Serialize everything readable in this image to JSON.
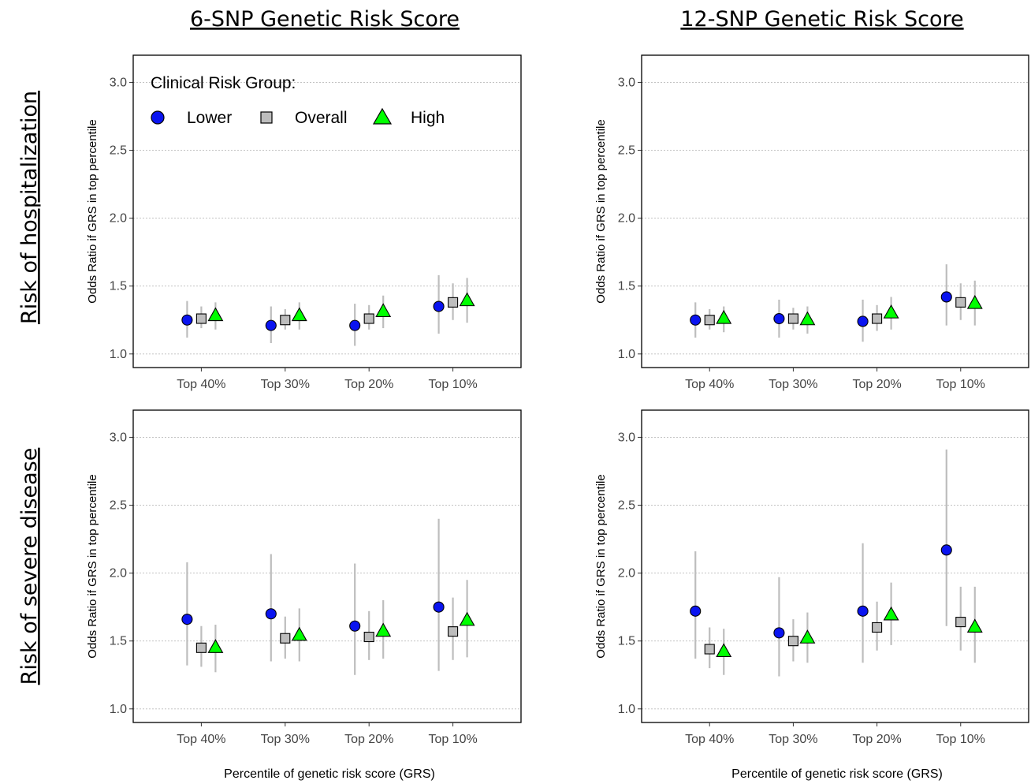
{
  "figure": {
    "column_titles": [
      "6-SNP Genetic Risk Score",
      "12-SNP Genetic Risk Score"
    ],
    "row_titles": [
      "Risk of hospitalization",
      "Risk of severe disease"
    ],
    "x_axis_label": "Percentile of genetic risk score (GRS)",
    "y_axis_label": "Odds Ratio if GRS in top percentile"
  },
  "legend": {
    "title": "Clinical Risk Group:",
    "placement": "top-left of first panel",
    "items": [
      {
        "label": "Lower",
        "shape": "circle",
        "color": "#0a14f0"
      },
      {
        "label": "Overall",
        "shape": "square",
        "color": "#bdbdbd"
      },
      {
        "label": "High",
        "shape": "triangle",
        "color": "#00ff00"
      }
    ]
  },
  "chart_data": [
    {
      "type": "scatter",
      "panel": "Risk of hospitalization / 6-SNP Genetic Risk Score",
      "categories": [
        "Top 40%",
        "Top 30%",
        "Top 20%",
        "Top 10%"
      ],
      "ylim": [
        0.9,
        3.2
      ],
      "yticks": [
        "1.0",
        "1.5",
        "2.0",
        "2.5",
        "3.0"
      ],
      "grid": "horizontal dotted",
      "series": [
        {
          "name": "Lower",
          "values": [
            1.25,
            1.21,
            1.21,
            1.35
          ],
          "ci_low": [
            1.12,
            1.08,
            1.06,
            1.15
          ],
          "ci_high": [
            1.39,
            1.35,
            1.37,
            1.58
          ]
        },
        {
          "name": "Overall",
          "values": [
            1.26,
            1.25,
            1.26,
            1.38
          ],
          "ci_low": [
            1.19,
            1.18,
            1.18,
            1.25
          ],
          "ci_high": [
            1.35,
            1.33,
            1.36,
            1.52
          ]
        },
        {
          "name": "High",
          "values": [
            1.28,
            1.28,
            1.31,
            1.39
          ],
          "ci_low": [
            1.18,
            1.18,
            1.19,
            1.23
          ],
          "ci_high": [
            1.38,
            1.38,
            1.43,
            1.56
          ]
        }
      ]
    },
    {
      "type": "scatter",
      "panel": "Risk of hospitalization / 12-SNP Genetic Risk Score",
      "categories": [
        "Top 40%",
        "Top 30%",
        "Top 20%",
        "Top 10%"
      ],
      "ylim": [
        0.9,
        3.2
      ],
      "yticks": [
        "1.0",
        "1.5",
        "2.0",
        "2.5",
        "3.0"
      ],
      "grid": "horizontal dotted",
      "series": [
        {
          "name": "Lower",
          "values": [
            1.25,
            1.26,
            1.24,
            1.42
          ],
          "ci_low": [
            1.12,
            1.12,
            1.09,
            1.21
          ],
          "ci_high": [
            1.38,
            1.4,
            1.4,
            1.66
          ]
        },
        {
          "name": "Overall",
          "values": [
            1.25,
            1.26,
            1.26,
            1.38
          ],
          "ci_low": [
            1.18,
            1.18,
            1.17,
            1.25
          ],
          "ci_high": [
            1.33,
            1.34,
            1.36,
            1.52
          ]
        },
        {
          "name": "High",
          "values": [
            1.26,
            1.25,
            1.3,
            1.37
          ],
          "ci_low": [
            1.16,
            1.15,
            1.18,
            1.21
          ],
          "ci_high": [
            1.35,
            1.35,
            1.42,
            1.54
          ]
        }
      ]
    },
    {
      "type": "scatter",
      "panel": "Risk of severe disease / 6-SNP Genetic Risk Score",
      "categories": [
        "Top 40%",
        "Top 30%",
        "Top 20%",
        "Top 10%"
      ],
      "ylim": [
        0.9,
        3.2
      ],
      "yticks": [
        "1.0",
        "1.5",
        "2.0",
        "2.5",
        "3.0"
      ],
      "grid": "horizontal dotted",
      "series": [
        {
          "name": "Lower",
          "values": [
            1.66,
            1.7,
            1.61,
            1.75
          ],
          "ci_low": [
            1.32,
            1.35,
            1.25,
            1.28
          ],
          "ci_high": [
            2.08,
            2.14,
            2.07,
            2.4
          ]
        },
        {
          "name": "Overall",
          "values": [
            1.45,
            1.52,
            1.53,
            1.57
          ],
          "ci_low": [
            1.31,
            1.37,
            1.36,
            1.36
          ],
          "ci_high": [
            1.61,
            1.68,
            1.72,
            1.82
          ]
        },
        {
          "name": "High",
          "values": [
            1.45,
            1.54,
            1.57,
            1.65
          ],
          "ci_low": [
            1.27,
            1.35,
            1.37,
            1.38
          ],
          "ci_high": [
            1.62,
            1.74,
            1.8,
            1.95
          ]
        }
      ]
    },
    {
      "type": "scatter",
      "panel": "Risk of severe disease / 12-SNP Genetic Risk Score",
      "categories": [
        "Top 40%",
        "Top 30%",
        "Top 20%",
        "Top 10%"
      ],
      "ylim": [
        0.9,
        3.2
      ],
      "yticks": [
        "1.0",
        "1.5",
        "2.0",
        "2.5",
        "3.0"
      ],
      "grid": "horizontal dotted",
      "series": [
        {
          "name": "Lower",
          "values": [
            1.72,
            1.56,
            1.72,
            2.17
          ],
          "ci_low": [
            1.37,
            1.24,
            1.34,
            1.61
          ],
          "ci_high": [
            2.16,
            1.97,
            2.22,
            2.91
          ]
        },
        {
          "name": "Overall",
          "values": [
            1.44,
            1.5,
            1.6,
            1.64
          ],
          "ci_low": [
            1.3,
            1.35,
            1.43,
            1.43
          ],
          "ci_high": [
            1.6,
            1.66,
            1.79,
            1.9
          ]
        },
        {
          "name": "High",
          "values": [
            1.42,
            1.52,
            1.69,
            1.6
          ],
          "ci_low": [
            1.25,
            1.34,
            1.47,
            1.34
          ],
          "ci_high": [
            1.59,
            1.71,
            1.93,
            1.9
          ]
        }
      ]
    }
  ]
}
